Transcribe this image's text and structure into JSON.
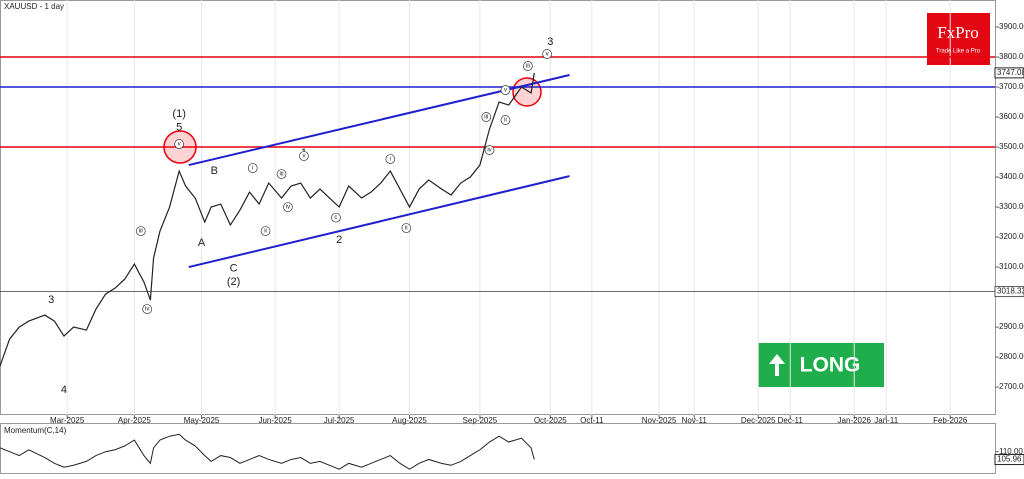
{
  "chart_data": {
    "type": "line",
    "title": "XAUUSD - 1 day",
    "x": [
      0,
      3,
      6,
      9,
      14,
      17,
      20,
      23,
      27,
      30,
      33,
      36,
      39,
      42,
      45,
      47,
      48,
      50,
      53,
      56,
      58,
      61,
      64,
      66,
      69,
      72,
      75,
      78,
      81,
      84,
      88,
      91,
      94,
      97,
      100,
      103,
      106,
      109,
      113,
      116,
      119,
      122,
      125,
      128,
      131,
      134,
      138,
      141,
      144,
      147,
      150,
      153,
      156,
      159,
      163,
      166,
      167
    ],
    "values": [
      2770,
      2860,
      2900,
      2920,
      2940,
      2920,
      2870,
      2900,
      2890,
      2960,
      3010,
      3030,
      3060,
      3110,
      3050,
      2990,
      3130,
      3220,
      3300,
      3420,
      3370,
      3330,
      3250,
      3300,
      3310,
      3240,
      3290,
      3350,
      3310,
      3380,
      3330,
      3370,
      3380,
      3330,
      3360,
      3330,
      3300,
      3370,
      3330,
      3350,
      3380,
      3420,
      3360,
      3300,
      3360,
      3390,
      3360,
      3340,
      3380,
      3400,
      3440,
      3560,
      3650,
      3640,
      3700,
      3680,
      3747.08
    ],
    "color": "#222222",
    "xlim": [
      0,
      311
    ],
    "ylim": [
      2607,
      3990
    ],
    "xticks": [
      {
        "value": 21,
        "label": "Mar-2025"
      },
      {
        "value": 42,
        "label": "Apr-2025"
      },
      {
        "value": 63,
        "label": "May-2025"
      },
      {
        "value": 86,
        "label": "Jun-2025"
      },
      {
        "value": 106,
        "label": "Jul-2025"
      },
      {
        "value": 128,
        "label": "Aug-2025"
      },
      {
        "value": 150,
        "label": "Sep-2025"
      },
      {
        "value": 172,
        "label": "Oct-2025"
      },
      {
        "value": 185,
        "label": "Oct-11"
      },
      {
        "value": 206,
        "label": "Nov-2025"
      },
      {
        "value": 217,
        "label": "Nov-11"
      },
      {
        "value": 237,
        "label": "Dec-2025"
      },
      {
        "value": 247,
        "label": "Dec-11"
      },
      {
        "value": 267,
        "label": "Jan-2026"
      },
      {
        "value": 277,
        "label": "Jan-11"
      },
      {
        "value": 297,
        "label": "Feb-2026"
      }
    ],
    "yticks": [
      {
        "value": 3900,
        "label": "3900.00"
      },
      {
        "value": 3800,
        "label": "3800.00"
      },
      {
        "value": 3700,
        "label": "3700.00"
      },
      {
        "value": 3600,
        "label": "3600.00"
      },
      {
        "value": 3500,
        "label": "3500.00"
      },
      {
        "value": 3400,
        "label": "3400.00"
      },
      {
        "value": 3300,
        "label": "3300.00"
      },
      {
        "value": 3200,
        "label": "3200.00"
      },
      {
        "value": 3100,
        "label": "3100.00"
      },
      {
        "value": 2900,
        "label": "2900.00"
      },
      {
        "value": 2800,
        "label": "2800.00"
      },
      {
        "value": 2700,
        "label": "2700.00"
      }
    ],
    "last_price": 3747.08,
    "hlines": [
      {
        "value": 3800,
        "color": "#e8000b"
      },
      {
        "value": 3700,
        "color": "#1f1fd0"
      },
      {
        "value": 3500,
        "color": "#e8000b"
      },
      {
        "value": 3018.33,
        "color": "#555555"
      }
    ],
    "trendlines": [
      {
        "x": [
          59,
          178
        ],
        "values": [
          3440,
          3740
        ],
        "color": "#1f1fd0"
      },
      {
        "x": [
          59,
          178
        ],
        "values": [
          3100,
          3403
        ],
        "color": "#1f1fd0"
      }
    ],
    "annotations": [
      {
        "text": "(1)",
        "x": 56,
        "y": 3610,
        "circled": false
      },
      {
        "text": "5",
        "x": 56,
        "y": 3565,
        "circled": false
      },
      {
        "text": "A",
        "x": 63,
        "y": 3180,
        "circled": false
      },
      {
        "text": "B",
        "x": 67,
        "y": 3420,
        "circled": false
      },
      {
        "text": "C",
        "x": 73,
        "y": 3095,
        "circled": false
      },
      {
        "text": "(2)",
        "x": 73,
        "y": 3050,
        "circled": false
      },
      {
        "text": "2",
        "x": 106,
        "y": 3190,
        "circled": false
      },
      {
        "text": "1",
        "x": 95,
        "y": 3480,
        "circled": false
      },
      {
        "text": "3",
        "x": 16,
        "y": 2990,
        "circled": false
      },
      {
        "text": "4",
        "x": 20,
        "y": 2690,
        "circled": false
      },
      {
        "text": "3",
        "x": 172,
        "y": 3850,
        "circled": false
      },
      {
        "text": "v",
        "x": 56,
        "y": 3510,
        "circled": true
      },
      {
        "text": "iii",
        "x": 44,
        "y": 3220,
        "circled": true
      },
      {
        "text": "iv",
        "x": 46,
        "y": 2960,
        "circled": true
      },
      {
        "text": "i",
        "x": 79,
        "y": 3430,
        "circled": true
      },
      {
        "text": "iii",
        "x": 88,
        "y": 3410,
        "circled": true
      },
      {
        "text": "v",
        "x": 95,
        "y": 3470,
        "circled": true
      },
      {
        "text": "ii",
        "x": 83,
        "y": 3220,
        "circled": true
      },
      {
        "text": "iv",
        "x": 90,
        "y": 3300,
        "circled": true
      },
      {
        "text": "c",
        "x": 105,
        "y": 3265,
        "circled": true
      },
      {
        "text": "i",
        "x": 122,
        "y": 3460,
        "circled": true
      },
      {
        "text": "ii",
        "x": 127,
        "y": 3230,
        "circled": true
      },
      {
        "text": "iii",
        "x": 152,
        "y": 3600,
        "circled": true
      },
      {
        "text": "iv",
        "x": 153,
        "y": 3490,
        "circled": true
      },
      {
        "text": "v",
        "x": 158,
        "y": 3690,
        "circled": true
      },
      {
        "text": "ii",
        "x": 158,
        "y": 3590,
        "circled": true
      },
      {
        "text": "iii",
        "x": 165,
        "y": 3770,
        "circled": true
      },
      {
        "text": "v",
        "x": 171,
        "y": 3810,
        "circled": true
      }
    ],
    "momentum": {
      "title": "Momentum(C,14)",
      "values": [
        112,
        110,
        108,
        111,
        107,
        104,
        102,
        103,
        105,
        108,
        110,
        111,
        113,
        116,
        108,
        104,
        112,
        116,
        118,
        119,
        116,
        113,
        108,
        105,
        108,
        107,
        104,
        106,
        108,
        106,
        104,
        106,
        107,
        104,
        105,
        103,
        101,
        104,
        102,
        104,
        106,
        108,
        104,
        101,
        104,
        106,
        104,
        103,
        105,
        108,
        111,
        115,
        118,
        115,
        117,
        112,
        105.96
      ],
      "ylim": [
        98.5,
        124.3
      ],
      "yticks": [
        {
          "value": 110,
          "label": "110.00"
        }
      ],
      "last_value": 105.96
    },
    "logo": {
      "brand": "FxPro",
      "tagline": "Trade Like a Pro"
    },
    "signal": "LONG"
  }
}
